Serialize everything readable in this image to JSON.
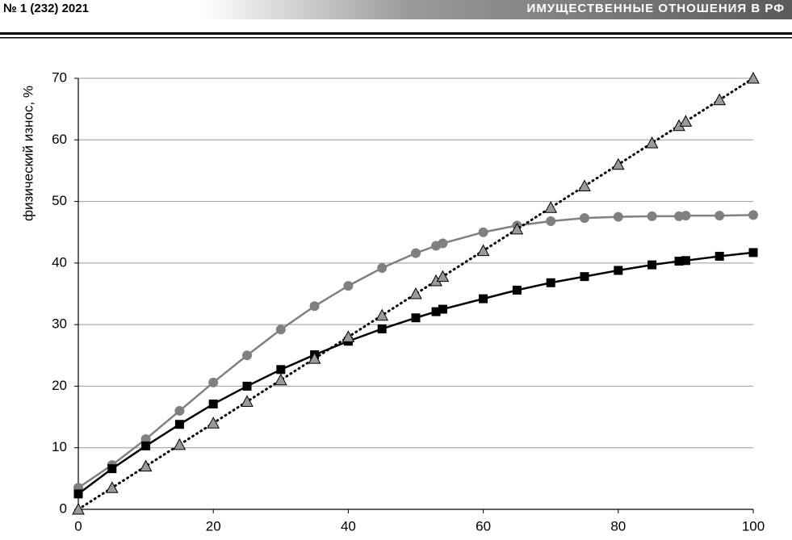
{
  "header": {
    "left": "№ 1 (232) 2021",
    "right": "ИМУЩЕСТВЕННЫЕ ОТНОШЕНИЯ В РФ"
  },
  "chart_data": {
    "type": "line",
    "y_label": "физический износ, %",
    "x": [
      0,
      5,
      10,
      15,
      20,
      25,
      30,
      35,
      40,
      45,
      50,
      53,
      54,
      60,
      65,
      70,
      75,
      80,
      85,
      89,
      90,
      95,
      100
    ],
    "series": [
      {
        "color": "#808080",
        "line_color": "#808080",
        "marker": "circle",
        "linestyle": "solid",
        "values": [
          3.5,
          7.2,
          11.4,
          16,
          20.6,
          25,
          29.2,
          33,
          36.3,
          39.2,
          41.6,
          42.8,
          43.2,
          45,
          46.1,
          46.8,
          47.3,
          47.5,
          47.6,
          47.6,
          47.7,
          47.7,
          47.8
        ]
      },
      {
        "color": "#000000",
        "line_color": "#000000",
        "marker": "square",
        "linestyle": "solid",
        "values": [
          2.5,
          6.6,
          10.3,
          13.8,
          17.1,
          20,
          22.7,
          25.1,
          27.3,
          29.3,
          31.1,
          32.1,
          32.5,
          34.2,
          35.6,
          36.8,
          37.8,
          38.8,
          39.7,
          40.3,
          40.4,
          41.1,
          41.7
        ]
      },
      {
        "color": "#9a9a9a",
        "line_color": "#000000",
        "marker": "triangle",
        "linestyle": "dotted",
        "values": [
          0,
          3.5,
          7,
          10.5,
          14,
          17.5,
          21,
          24.5,
          28,
          31.5,
          35,
          37.1,
          37.8,
          42,
          45.5,
          49,
          52.5,
          56,
          59.5,
          62.3,
          63,
          66.5,
          70
        ]
      }
    ],
    "xlim": [
      0,
      100
    ],
    "xticks": [
      0,
      20,
      40,
      60,
      80,
      100
    ],
    "ylim": [
      0,
      70
    ],
    "yticks": [
      0,
      10,
      20,
      30,
      40,
      50,
      60,
      70
    ],
    "grid": true
  }
}
